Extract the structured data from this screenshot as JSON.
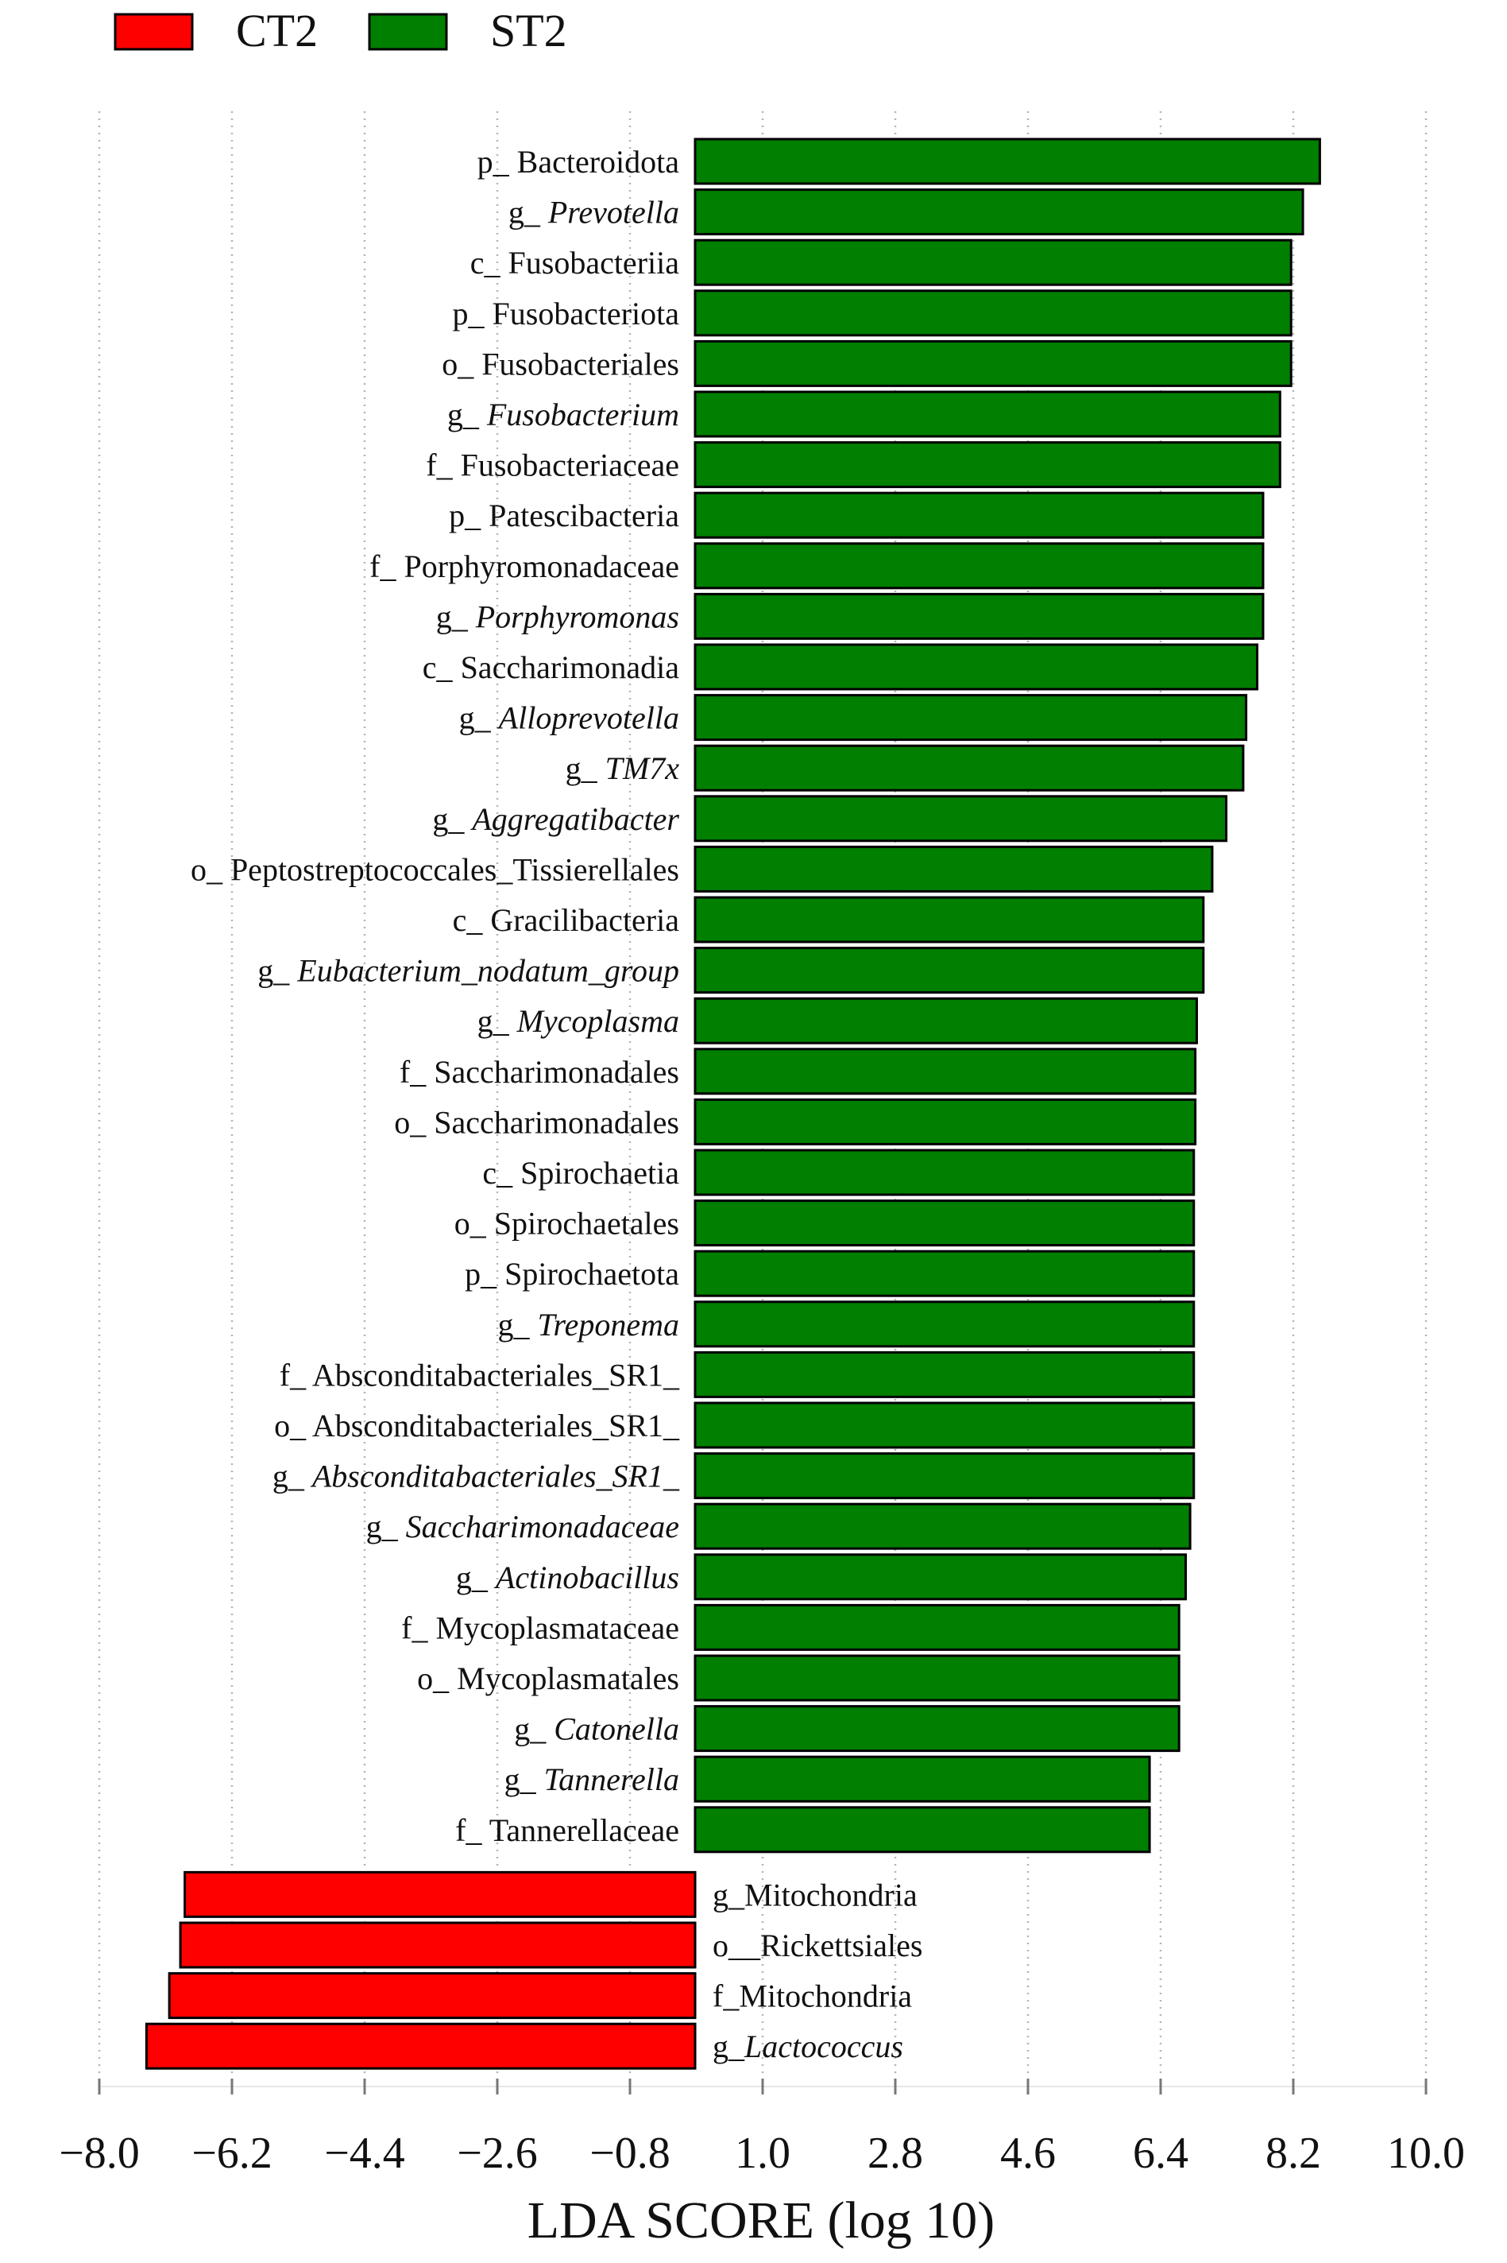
{
  "chart_data": {
    "type": "bar",
    "orientation": "horizontal",
    "xlabel": "LDA SCORE (log 10)",
    "xlim": [
      -8.0,
      10.0
    ],
    "xticks": [
      "−8.0",
      "−6.2",
      "−4.4",
      "−2.6",
      "−0.8",
      "1.0",
      "2.8",
      "4.6",
      "6.4",
      "8.2",
      "10.0"
    ],
    "grid": "vertical dotted",
    "legend": [
      {
        "name": "CT2",
        "color": "#ff0000"
      },
      {
        "name": "ST2",
        "color": "#007f00"
      }
    ],
    "legend_position": "top-left",
    "bars": [
      {
        "prefix": "p_ ",
        "name": "Bacteroidota",
        "italic": false,
        "group": "ST2",
        "value": 8.56
      },
      {
        "prefix": "g_ ",
        "name": "Prevotella",
        "italic": true,
        "group": "ST2",
        "value": 8.33
      },
      {
        "prefix": "c_ ",
        "name": "Fusobacteriia",
        "italic": false,
        "group": "ST2",
        "value": 8.17
      },
      {
        "prefix": "p_ ",
        "name": "Fusobacteriota",
        "italic": false,
        "group": "ST2",
        "value": 8.17
      },
      {
        "prefix": "o_ ",
        "name": "Fusobacteriales",
        "italic": false,
        "group": "ST2",
        "value": 8.17
      },
      {
        "prefix": "g_ ",
        "name": "Fusobacterium",
        "italic": true,
        "group": "ST2",
        "value": 8.02
      },
      {
        "prefix": "f_ ",
        "name": "Fusobacteriaceae",
        "italic": false,
        "group": "ST2",
        "value": 8.02
      },
      {
        "prefix": "p_ ",
        "name": "Patescibacteria",
        "italic": false,
        "group": "ST2",
        "value": 7.79
      },
      {
        "prefix": "f_ ",
        "name": "Porphyromonadaceae",
        "italic": false,
        "group": "ST2",
        "value": 7.79
      },
      {
        "prefix": "g_ ",
        "name": "Porphyromonas",
        "italic": true,
        "group": "ST2",
        "value": 7.79
      },
      {
        "prefix": "c_ ",
        "name": "Saccharimonadia",
        "italic": false,
        "group": "ST2",
        "value": 7.71
      },
      {
        "prefix": "g_ ",
        "name": "Alloprevotella",
        "italic": true,
        "group": "ST2",
        "value": 7.56
      },
      {
        "prefix": "g_ ",
        "name": "TM7x",
        "italic": true,
        "group": "ST2",
        "value": 7.52
      },
      {
        "prefix": "g_ ",
        "name": "Aggregatibacter",
        "italic": true,
        "group": "ST2",
        "value": 7.29
      },
      {
        "prefix": "o_ ",
        "name": "Peptostreptococcales_Tissierellales",
        "italic": false,
        "group": "ST2",
        "value": 7.1
      },
      {
        "prefix": "c_ ",
        "name": "Gracilibacteria",
        "italic": false,
        "group": "ST2",
        "value": 6.98
      },
      {
        "prefix": "g_ ",
        "name": "Eubacterium_nodatum_group",
        "italic": true,
        "group": "ST2",
        "value": 6.98
      },
      {
        "prefix": "g_ ",
        "name": "Mycoplasma",
        "italic": true,
        "group": "ST2",
        "value": 6.89
      },
      {
        "prefix": "f_ ",
        "name": "Saccharimonadales",
        "italic": false,
        "group": "ST2",
        "value": 6.87
      },
      {
        "prefix": "o_ ",
        "name": "Saccharimonadales",
        "italic": false,
        "group": "ST2",
        "value": 6.87
      },
      {
        "prefix": "c_ ",
        "name": "Spirochaetia",
        "italic": false,
        "group": "ST2",
        "value": 6.85
      },
      {
        "prefix": "o_ ",
        "name": "Spirochaetales",
        "italic": false,
        "group": "ST2",
        "value": 6.85
      },
      {
        "prefix": "p_ ",
        "name": "Spirochaetota",
        "italic": false,
        "group": "ST2",
        "value": 6.85
      },
      {
        "prefix": "g_ ",
        "name": "Treponema",
        "italic": true,
        "group": "ST2",
        "value": 6.85
      },
      {
        "prefix": "f_ ",
        "name": "Absconditabacteriales_SR1_",
        "italic": false,
        "group": "ST2",
        "value": 6.85
      },
      {
        "prefix": "o_ ",
        "name": "Absconditabacteriales_SR1_",
        "italic": false,
        "group": "ST2",
        "value": 6.85
      },
      {
        "prefix": "g_ ",
        "name": "Absconditabacteriales_SR1_",
        "italic": true,
        "group": "ST2",
        "value": 6.85
      },
      {
        "prefix": "g_ ",
        "name": "Saccharimonadaceae",
        "italic": true,
        "group": "ST2",
        "value": 6.8
      },
      {
        "prefix": "g_ ",
        "name": "Actinobacillus",
        "italic": true,
        "group": "ST2",
        "value": 6.74
      },
      {
        "prefix": "f_ ",
        "name": "Mycoplasmataceae",
        "italic": false,
        "group": "ST2",
        "value": 6.65
      },
      {
        "prefix": "o_ ",
        "name": "Mycoplasmatales",
        "italic": false,
        "group": "ST2",
        "value": 6.65
      },
      {
        "prefix": "g_ ",
        "name": "Catonella",
        "italic": true,
        "group": "ST2",
        "value": 6.65
      },
      {
        "prefix": "g_ ",
        "name": "Tannerella",
        "italic": true,
        "group": "ST2",
        "value": 6.25
      },
      {
        "prefix": "f_ ",
        "name": "Tannerellaceae",
        "italic": false,
        "group": "ST2",
        "value": 6.25
      },
      {
        "prefix": "g_",
        "name": "Mitochondria",
        "italic": false,
        "group": "CT2",
        "value": -6.84
      },
      {
        "prefix": "o__",
        "name": "Rickettsiales",
        "italic": false,
        "group": "CT2",
        "value": -6.9
      },
      {
        "prefix": "f_",
        "name": "Mitochondria",
        "italic": false,
        "group": "CT2",
        "value": -7.05
      },
      {
        "prefix": "g_",
        "name": "Lactococcus",
        "italic": true,
        "group": "CT2",
        "value": -7.36
      }
    ]
  }
}
